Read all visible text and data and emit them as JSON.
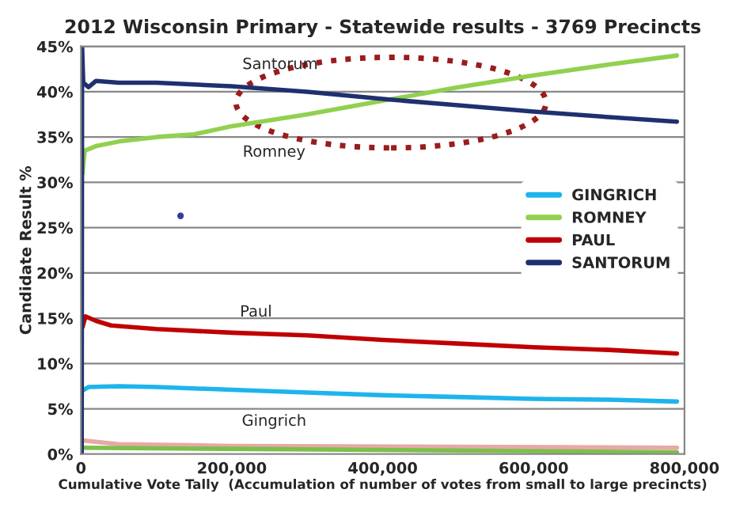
{
  "chart_data": {
    "type": "line",
    "title": "2012 Wisconsin Primary - Statewide results - 3769 Precincts",
    "xlabel": "Cumulative Vote Tally  (Accumulation of number of votes from small to large precincts)",
    "ylabel": "Candidate Result %",
    "xlim": [
      0,
      800000
    ],
    "ylim": [
      0,
      45
    ],
    "xticks": [
      {
        "value": 0,
        "label": "0"
      },
      {
        "value": 200000,
        "label": "200,000"
      },
      {
        "value": 400000,
        "label": "400,000"
      },
      {
        "value": 600000,
        "label": "600,000"
      },
      {
        "value": 800000,
        "label": "800,000"
      }
    ],
    "yticks": [
      {
        "value": 0,
        "label": "0%"
      },
      {
        "value": 5,
        "label": "5%"
      },
      {
        "value": 10,
        "label": "10%"
      },
      {
        "value": 15,
        "label": "15%"
      },
      {
        "value": 20,
        "label": "20%"
      },
      {
        "value": 25,
        "label": "25%"
      },
      {
        "value": 30,
        "label": "30%"
      },
      {
        "value": 35,
        "label": "35%"
      },
      {
        "value": 40,
        "label": "40%"
      },
      {
        "value": 45,
        "label": "45%"
      }
    ],
    "grid": "y",
    "legend": "right",
    "marker": "none",
    "line_style": "solid",
    "series": [
      {
        "color": "#e8a8a8",
        "x": [
          2000,
          50000,
          200000,
          790000
        ],
        "values": [
          1.5,
          1.1,
          0.9,
          0.7
        ]
      },
      {
        "color": "#7cc04a",
        "x": [
          2000,
          790000
        ],
        "values": [
          0.7,
          0.2
        ]
      },
      {
        "name": "GINGRICH",
        "color": "#1eb4ec",
        "x": [
          2000,
          10000,
          50000,
          100000,
          200000,
          300000,
          400000,
          500000,
          600000,
          700000,
          790000
        ],
        "values": [
          7,
          7.4,
          7.5,
          7.4,
          7.1,
          6.8,
          6.5,
          6.3,
          6.1,
          6,
          5.8
        ]
      },
      {
        "name": "ROMNEY",
        "color": "#92d050",
        "x": [
          2000,
          5000,
          20000,
          50000,
          100000,
          150000,
          200000,
          300000,
          400000,
          500000,
          600000,
          700000,
          790000
        ],
        "values": [
          31,
          33.5,
          34,
          34.5,
          35,
          35.3,
          36.2,
          37.5,
          39,
          40.5,
          41.8,
          43,
          44
        ]
      },
      {
        "name": "PAUL",
        "color": "#c00000",
        "x": [
          2000,
          6000,
          20000,
          40000,
          100000,
          200000,
          300000,
          400000,
          500000,
          600000,
          700000,
          790000
        ],
        "values": [
          14,
          15.2,
          14.7,
          14.2,
          13.8,
          13.4,
          13.1,
          12.6,
          12.2,
          11.8,
          11.5,
          11.1
        ]
      },
      {
        "name": "SANTORUM",
        "color": "#1f3070",
        "x": [
          1000,
          1500,
          3000,
          10000,
          20000,
          50000,
          100000,
          150000,
          200000,
          300000,
          400000,
          500000,
          600000,
          700000,
          790000
        ],
        "values": [
          0,
          45,
          41,
          40.5,
          41.2,
          41,
          41,
          40.8,
          40.6,
          40,
          39.2,
          38.5,
          37.8,
          37.2,
          36.7
        ]
      },
      {
        "type": "scatter",
        "color": "#3a3aa0",
        "x": [
          132000
        ],
        "values": [
          26.3
        ]
      }
    ],
    "annotations": [
      "Santorum",
      "Romney",
      "Paul",
      "Gingrich"
    ]
  }
}
